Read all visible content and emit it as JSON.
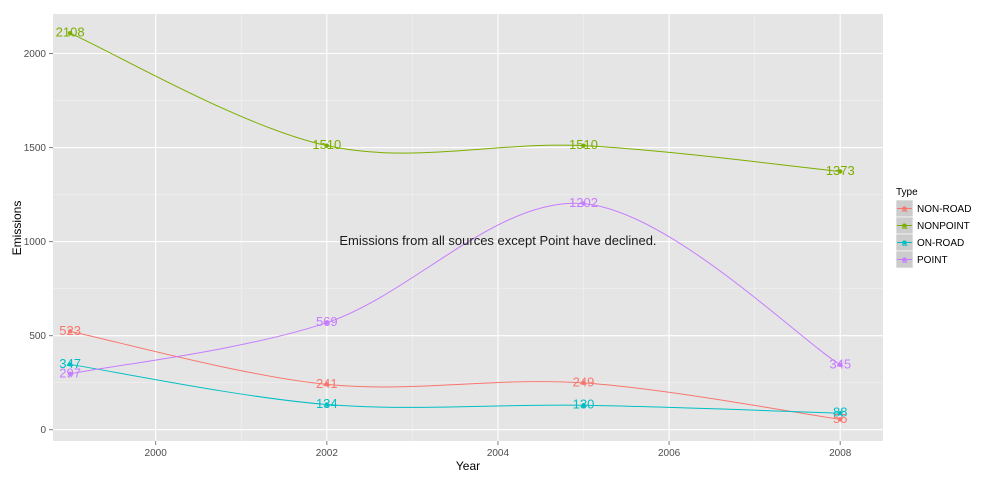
{
  "chart_data": {
    "type": "line",
    "xlabel": "Year",
    "ylabel": "Emissions",
    "xlim": [
      1998.8,
      2008.5
    ],
    "ylim": [
      -60,
      2210
    ],
    "x_ticks": [
      2000,
      2002,
      2004,
      2006,
      2008
    ],
    "y_ticks": [
      0,
      500,
      1000,
      1500,
      2000
    ],
    "annotation": {
      "text": "Emissions from all sources except Point have declined.",
      "x": 2004,
      "y": 1000
    },
    "legend": {
      "title": "Type",
      "placement": "right"
    },
    "grid": true,
    "series": [
      {
        "name": "NON-ROAD",
        "color": "#F8766D",
        "x": [
          1999,
          2002,
          2005,
          2008
        ],
        "values": [
          523,
          241,
          249,
          55
        ],
        "labels": [
          "523",
          "241",
          "249",
          "55"
        ]
      },
      {
        "name": "NONPOINT",
        "color": "#7CAE00",
        "x": [
          1999,
          2002,
          2005,
          2008
        ],
        "values": [
          2108,
          1510,
          1510,
          1373
        ],
        "labels": [
          "2108",
          "1510",
          "1510",
          "1373"
        ]
      },
      {
        "name": "ON-ROAD",
        "color": "#00BFC4",
        "x": [
          1999,
          2002,
          2005,
          2008
        ],
        "values": [
          347,
          134,
          130,
          88
        ],
        "labels": [
          "347",
          "134",
          "130",
          "88"
        ]
      },
      {
        "name": "POINT",
        "color": "#C77CFF",
        "x": [
          1999,
          2002,
          2005,
          2008
        ],
        "values": [
          297,
          569,
          1202,
          345
        ],
        "labels": [
          "297",
          "569",
          "1202",
          "345"
        ]
      }
    ]
  }
}
